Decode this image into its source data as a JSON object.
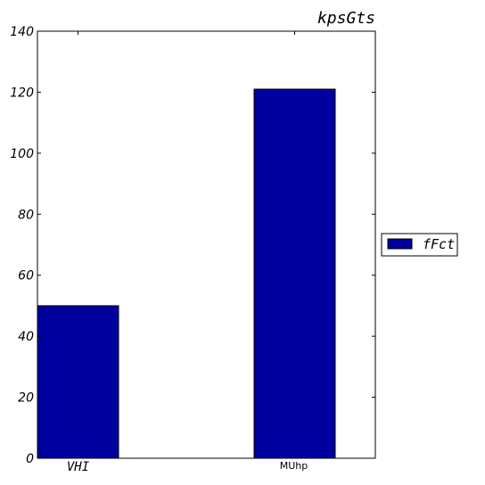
{
  "chart_data": {
    "type": "bar",
    "title": "kpsGts",
    "categories": [
      "VHI",
      "MUhp"
    ],
    "series": [
      {
        "name": "fFct",
        "values": [
          50,
          121
        ],
        "color": "#0000a0"
      }
    ],
    "ylim": [
      0,
      140
    ],
    "yticks": [
      0,
      20,
      40,
      60,
      80,
      100,
      120,
      140
    ],
    "xlabel": "",
    "ylabel": "",
    "legend_position": "right",
    "grid": false
  }
}
